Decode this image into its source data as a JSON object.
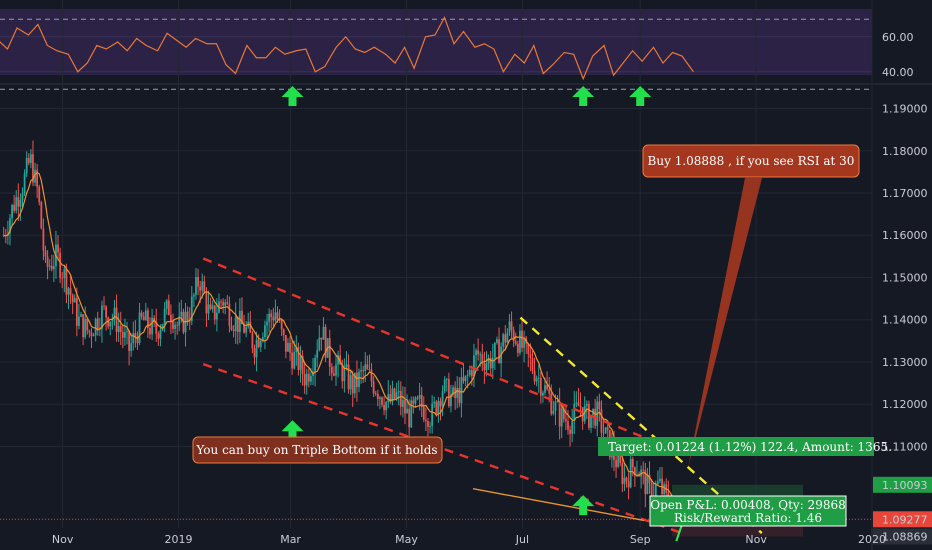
{
  "chart_data": [
    {
      "type": "line",
      "name": "rsi-pane",
      "y_ticks": [
        {
          "label": "60.00",
          "value": 60
        },
        {
          "label": "40.00",
          "value": 40
        }
      ],
      "ylim": [
        33,
        81
      ],
      "bands": [
        70,
        30
      ],
      "series": [
        {
          "name": "",
          "color": "#e8773a",
          "x_days": [
            0,
            5,
            10,
            16,
            21,
            26,
            31,
            37,
            42,
            47,
            52,
            57,
            63,
            68,
            73,
            78,
            84,
            89,
            94,
            99,
            104,
            110,
            115,
            120,
            125,
            131,
            136,
            141,
            146,
            151,
            157,
            162,
            167,
            172,
            178,
            183,
            188,
            193,
            198,
            204,
            209,
            214,
            219,
            225,
            230,
            235,
            240,
            245,
            251,
            256,
            261,
            266,
            272,
            277,
            282,
            287,
            292,
            298,
            303,
            308,
            313,
            319,
            324,
            329,
            334,
            339,
            345,
            350,
            355,
            360,
            366
          ],
          "values": [
            58,
            53,
            65,
            61,
            67,
            55,
            52,
            50,
            40,
            45,
            55,
            53,
            57,
            52,
            59,
            55,
            52,
            62,
            58,
            54,
            59,
            56,
            56,
            44,
            39,
            55,
            48,
            48,
            54,
            50,
            52,
            53,
            40,
            43,
            54,
            60,
            53,
            51,
            54,
            50,
            45,
            54,
            42,
            60,
            61,
            71,
            56,
            63,
            54,
            56,
            53,
            40,
            50,
            45,
            55,
            39,
            44,
            51,
            50,
            36,
            49,
            55,
            38,
            45,
            52,
            46,
            54,
            45,
            51,
            49,
            40
          ]
        }
      ]
    },
    {
      "type": "candlestick",
      "name": "price-pane",
      "y_ticks": [
        {
          "label": "1.19000",
          "value": 1.19
        },
        {
          "label": "1.18000",
          "value": 1.18
        },
        {
          "label": "1.17000",
          "value": 1.17
        },
        {
          "label": "1.16000",
          "value": 1.16
        },
        {
          "label": "1.15000",
          "value": 1.15
        },
        {
          "label": "1.14000",
          "value": 1.14
        },
        {
          "label": "1.13000",
          "value": 1.13
        },
        {
          "label": "1.12000",
          "value": 1.12
        },
        {
          "label": "1.11000",
          "value": 1.11
        }
      ],
      "ylim": [
        1.0855,
        1.1958
      ],
      "price_labels": [
        {
          "label": "1.10093",
          "value": 1.10093,
          "color": "#1f9e45"
        },
        {
          "label": "1.09277",
          "value": 1.09277,
          "color": "#e8463a"
        },
        {
          "label": "1.08869",
          "value": 1.08869,
          "color": "#2a2e39"
        }
      ],
      "x_ticks": [
        {
          "label": "Nov",
          "day": 34
        },
        {
          "label": "2019",
          "day": 95
        },
        {
          "label": "Mar",
          "day": 154
        },
        {
          "label": "May",
          "day": 215
        },
        {
          "label": "Jul",
          "day": 276
        },
        {
          "label": "Sep",
          "day": 338
        },
        {
          "label": "Nov",
          "day": 399
        },
        {
          "label": "2020",
          "day": 460
        }
      ],
      "x_start_day": 3,
      "close_path": [
        [
          3,
          1.16
        ],
        [
          8,
          1.167
        ],
        [
          13,
          1.172
        ],
        [
          17,
          1.178
        ],
        [
          21,
          1.17
        ],
        [
          25,
          1.152
        ],
        [
          31,
          1.155
        ],
        [
          37,
          1.148
        ],
        [
          42,
          1.14
        ],
        [
          48,
          1.137
        ],
        [
          55,
          1.142
        ],
        [
          62,
          1.14
        ],
        [
          69,
          1.133
        ],
        [
          76,
          1.14
        ],
        [
          83,
          1.137
        ],
        [
          90,
          1.143
        ],
        [
          95,
          1.138
        ],
        [
          101,
          1.142
        ],
        [
          106,
          1.15
        ],
        [
          112,
          1.14
        ],
        [
          118,
          1.145
        ],
        [
          124,
          1.14
        ],
        [
          130,
          1.138
        ],
        [
          135,
          1.134
        ],
        [
          140,
          1.139
        ],
        [
          146,
          1.142
        ],
        [
          150,
          1.135
        ],
        [
          154,
          1.132
        ],
        [
          158,
          1.13
        ],
        [
          162,
          1.126
        ],
        [
          166,
          1.131
        ],
        [
          170,
          1.138
        ],
        [
          175,
          1.13
        ],
        [
          181,
          1.128
        ],
        [
          187,
          1.124
        ],
        [
          193,
          1.128
        ],
        [
          199,
          1.124
        ],
        [
          205,
          1.12
        ],
        [
          210,
          1.122
        ],
        [
          216,
          1.117
        ],
        [
          222,
          1.12
        ],
        [
          228,
          1.117
        ],
        [
          234,
          1.124
        ],
        [
          240,
          1.121
        ],
        [
          246,
          1.125
        ],
        [
          252,
          1.132
        ],
        [
          258,
          1.13
        ],
        [
          264,
          1.133
        ],
        [
          269,
          1.138
        ],
        [
          274,
          1.135
        ],
        [
          280,
          1.13
        ],
        [
          286,
          1.125
        ],
        [
          291,
          1.121
        ],
        [
          296,
          1.117
        ],
        [
          302,
          1.116
        ],
        [
          306,
          1.12
        ],
        [
          310,
          1.117
        ],
        [
          315,
          1.118
        ],
        [
          320,
          1.112
        ],
        [
          324,
          1.108
        ],
        [
          330,
          1.102
        ],
        [
          335,
          1.106
        ],
        [
          339,
          1.103
        ],
        [
          343,
          1.099
        ],
        [
          348,
          1.101
        ],
        [
          352,
          1.097
        ],
        [
          356,
          1.093
        ]
      ],
      "overlay_lines": [
        {
          "name": "channel-upper",
          "color": "#e8352c",
          "dash": true,
          "points": [
            [
              108,
              1.1545
            ],
            [
              360,
              1.1085
            ]
          ]
        },
        {
          "name": "channel-lower",
          "color": "#e8352c",
          "dash": true,
          "points": [
            [
              108,
              1.1295
            ],
            [
              360,
              1.0895
            ]
          ]
        },
        {
          "name": "trend-yellow",
          "color": "#f2e92d",
          "dash": true,
          "points": [
            [
              275,
              1.1405
            ],
            [
              402,
              1.0895
            ]
          ]
        },
        {
          "name": "orange-pointer",
          "color": "#e8952c",
          "dash": false,
          "points": [
            [
              250,
              1.1
            ],
            [
              340,
              1.0925
            ]
          ]
        }
      ],
      "markers": [
        {
          "name": "arrow-up-mar",
          "day": 155,
          "value": 1.1162
        },
        {
          "name": "arrow-up-aug",
          "day": 308,
          "value": 1.0985
        },
        {
          "name": "arrow-up-sep",
          "day": 338,
          "value": 1.0855
        }
      ],
      "rsi_markers": [
        {
          "name": "rsi-arrow-mar",
          "day": 155
        },
        {
          "name": "rsi-arrow-aug",
          "day": 308
        },
        {
          "name": "rsi-arrow-sep",
          "day": 338
        }
      ]
    }
  ],
  "annotations": {
    "buy_callout": "Buy 1.08888 , if you see RSI at 30",
    "triple_bottom_callout": "You can buy on Triple Bottom if it holds",
    "target_label": "Target: 0.01224 (1.12%) 122.4, Amount: 1365.",
    "open_pnl": "Open P&L: 0.00408, Qty: 29868",
    "risk_reward": "Risk/Reward Ratio: 1.46"
  }
}
